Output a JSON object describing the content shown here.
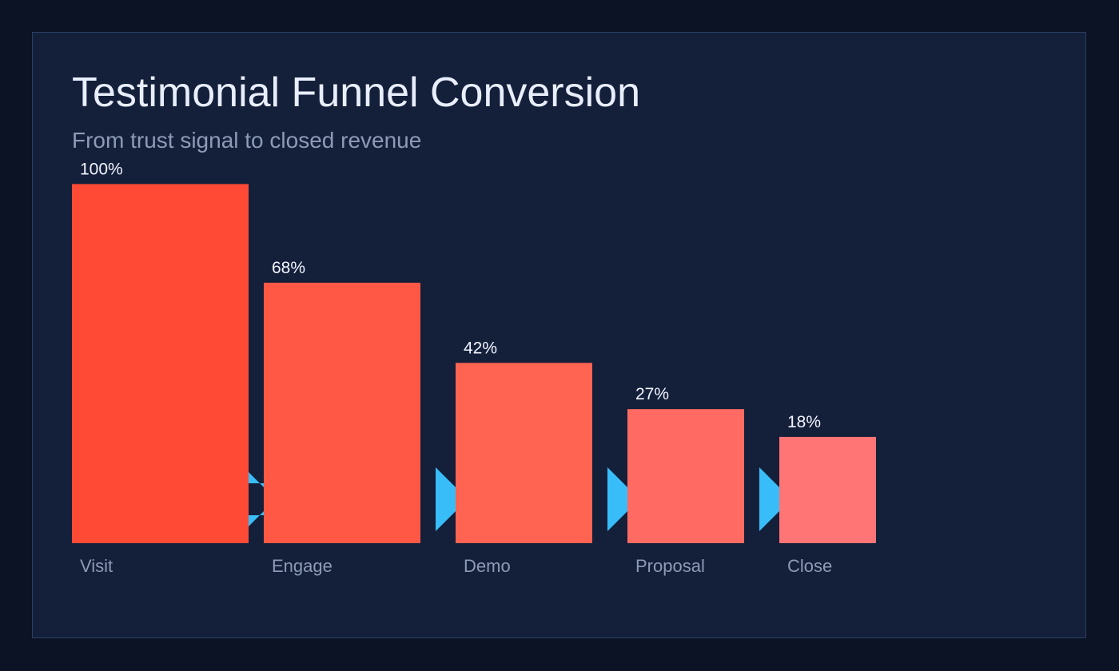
{
  "chart_data": {
    "type": "bar",
    "title": "Testimonial Funnel Conversion",
    "subtitle": "From trust signal to closed revenue",
    "categories": [
      "Visit",
      "Engage",
      "Demo",
      "Proposal",
      "Close"
    ],
    "values": [
      100,
      68,
      42,
      27,
      18
    ],
    "value_labels": [
      "100%",
      "68%",
      "42%",
      "27%",
      "18%"
    ],
    "unit": "%",
    "grid": false,
    "colors": {
      "bars": [
        "#ff4a36",
        "#ff5945",
        "#ff6352",
        "#ff6b62",
        "#ff7474"
      ],
      "arrows": "#38bdf8",
      "background": "#0c1324",
      "panel": "#141f3a"
    }
  }
}
